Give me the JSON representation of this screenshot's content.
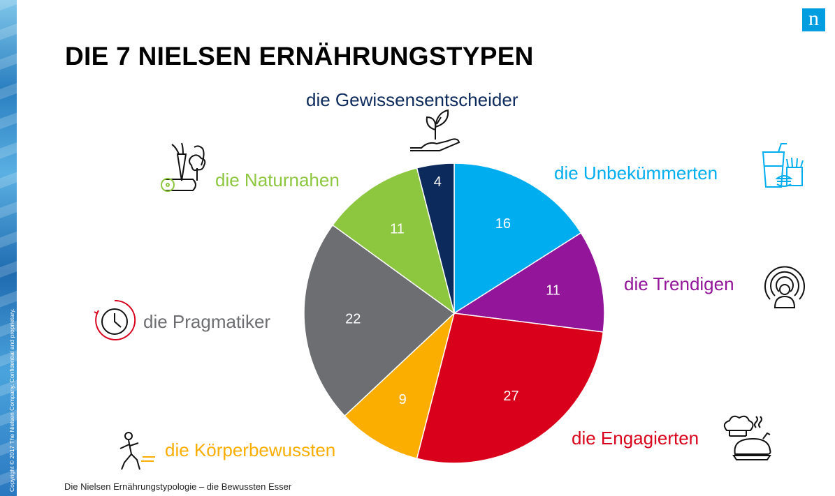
{
  "title": "DIE 7 NIELSEN ERNÄHRUNGSTYPEN",
  "footer": "Die Nielsen Ernährungstypologie – die Bewussten Esser",
  "copyright": "Copyright © 2017 The Nielsen Company. Confidential and proprietary.",
  "logo_text": "n",
  "colors": {
    "brand": "#009de0"
  },
  "chart_data": {
    "type": "pie",
    "title": "",
    "slices": [
      {
        "label": "die Unbekümmerten",
        "value": 16,
        "color": "#00aeef",
        "icon": "cup-fries-burger-icon"
      },
      {
        "label": "die Trendigen",
        "value": 11,
        "color": "#93169a",
        "icon": "person-radar-icon"
      },
      {
        "label": "die Engagierten",
        "value": 27,
        "color": "#d9001b",
        "icon": "chef-roast-icon"
      },
      {
        "label": "die Körperbewussten",
        "value": 9,
        "color": "#fbae00",
        "icon": "running-person-icon"
      },
      {
        "label": "die Pragmatiker",
        "value": 22,
        "color": "#6d6e71",
        "icon": "clock-icon"
      },
      {
        "label": "die Naturnahen",
        "value": 11,
        "color": "#8dc63f",
        "icon": "vegetables-icon"
      },
      {
        "label": "die Gewissensentscheider",
        "value": 4,
        "color": "#0d2a5c",
        "icon": "hand-plant-icon"
      }
    ],
    "start_angle_deg": 0,
    "direction": "clockwise",
    "data_label_color": "#ffffff"
  }
}
